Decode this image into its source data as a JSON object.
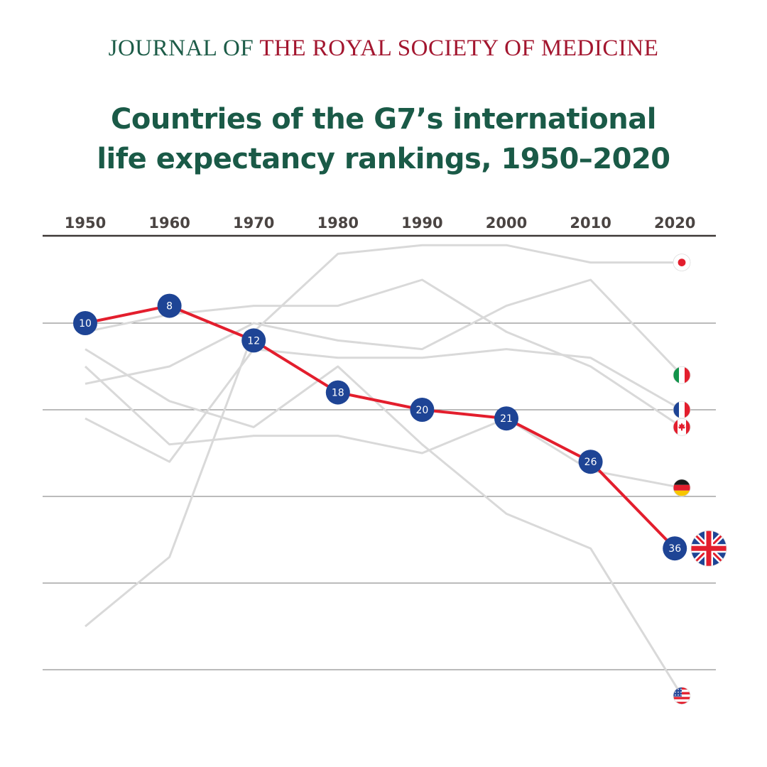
{
  "header": {
    "journal_part1": "JOURNAL OF",
    "journal_part2": "THE ROYAL SOCIETY OF MEDICINE"
  },
  "chart_data": {
    "type": "line",
    "title_line1": "Countries of the G7’s international",
    "title_line2": "life expectancy rankings, 1950–2020",
    "x": [
      1950,
      1960,
      1970,
      1980,
      1990,
      2000,
      2010,
      2020
    ],
    "x_tick_labels": [
      "1950",
      "1960",
      "1970",
      "1980",
      "1990",
      "2000",
      "2010",
      "2020"
    ],
    "y_axis": "rank",
    "y_inverted": true,
    "ylim": [
      0,
      55
    ],
    "gridlines": [
      10,
      20,
      30,
      40,
      50
    ],
    "colors": {
      "highlight_line": "#e31e2d",
      "marker": "#1e4495",
      "other_lines": "#d9d9d9",
      "grid": "#777777"
    },
    "series": [
      {
        "country": "Japan",
        "flag": "japan-flag",
        "values": [
          45,
          37,
          11,
          2,
          1,
          1,
          3,
          3
        ]
      },
      {
        "country": "Italy",
        "flag": "italy-flag",
        "values": [
          17,
          15,
          10,
          12,
          13,
          8,
          5,
          16
        ]
      },
      {
        "country": "Canada",
        "flag": "canada-flag",
        "values": [
          11,
          9,
          8,
          8,
          5,
          11,
          15,
          22
        ]
      },
      {
        "country": "France",
        "flag": "france-flag",
        "values": [
          21,
          26,
          13,
          14,
          14,
          13,
          14,
          20
        ]
      },
      {
        "country": "Germany",
        "flag": "germany-flag",
        "values": [
          15,
          24,
          23,
          23,
          25,
          21,
          27,
          29
        ]
      },
      {
        "country": "USA",
        "flag": "usa-flag",
        "values": [
          13,
          19,
          22,
          15,
          24,
          32,
          36,
          53
        ]
      },
      {
        "country": "UK",
        "flag": "uk-flag",
        "highlight": true,
        "values": [
          10,
          8,
          12,
          18,
          20,
          21,
          26,
          36
        ],
        "labels": [
          "10",
          "8",
          "12",
          "18",
          "20",
          "21",
          "26",
          "36"
        ]
      }
    ]
  }
}
